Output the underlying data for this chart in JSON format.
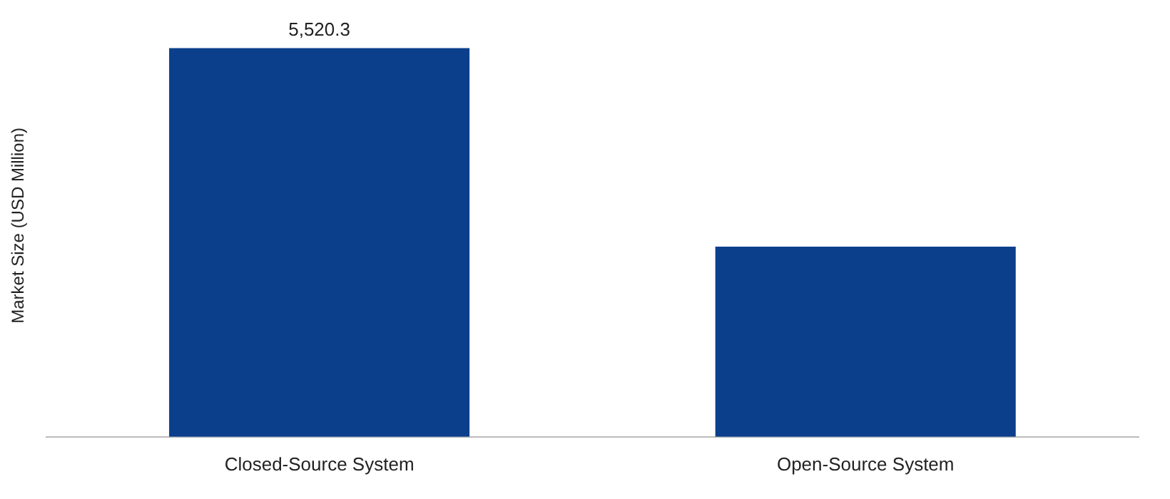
{
  "chart_data": {
    "type": "bar",
    "ylabel": "Market Size (USD Million)",
    "categories": [
      "Closed-Source System",
      "Open-Source System"
    ],
    "values": [
      5520.3,
      2700
    ],
    "color": "#0b3f8c",
    "value_labels": [
      "5,520.3",
      null
    ],
    "tick_labels": "x",
    "grid": false,
    "legend": false
  }
}
